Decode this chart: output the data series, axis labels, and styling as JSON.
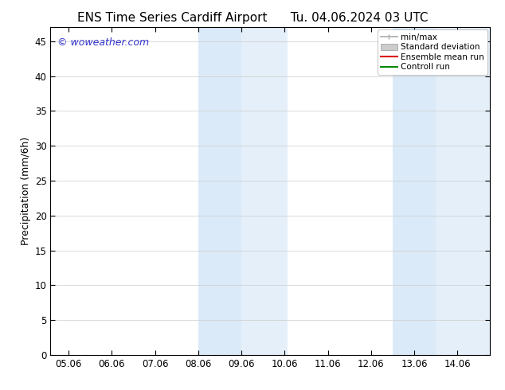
{
  "title_left": "ENS Time Series Cardiff Airport",
  "title_right": "Tu. 04.06.2024 03 UTC",
  "ylabel": "Precipitation (mm/6h)",
  "background_color": "#ffffff",
  "plot_bg_color": "#ffffff",
  "xlim_start": 4.58,
  "xlim_end": 14.75,
  "ylim": [
    0,
    47
  ],
  "yticks": [
    0,
    5,
    10,
    15,
    20,
    25,
    30,
    35,
    40,
    45
  ],
  "xtick_labels": [
    "05.06",
    "06.06",
    "07.06",
    "08.06",
    "09.06",
    "10.06",
    "11.06",
    "12.06",
    "13.06",
    "14.06"
  ],
  "xtick_positions": [
    5.0,
    6.0,
    7.0,
    8.0,
    9.0,
    10.0,
    11.0,
    12.0,
    13.0,
    14.0
  ],
  "shaded_regions": [
    {
      "x_start": 8.0,
      "x_end": 9.0,
      "color": "#dbeaf8"
    },
    {
      "x_start": 9.0,
      "x_end": 10.06,
      "color": "#e5eff9"
    },
    {
      "x_start": 12.5,
      "x_end": 13.5,
      "color": "#dbeaf8"
    },
    {
      "x_start": 13.5,
      "x_end": 14.75,
      "color": "#e5eff9"
    }
  ],
  "legend_items": [
    {
      "label": "min/max",
      "type": "minmax",
      "color": "#aaaaaa"
    },
    {
      "label": "Standard deviation",
      "type": "stddev",
      "color": "#cccccc"
    },
    {
      "label": "Ensemble mean run",
      "type": "line",
      "color": "#dd0000"
    },
    {
      "label": "Controll run",
      "type": "line",
      "color": "#008800"
    }
  ],
  "watermark": "© woweather.com",
  "watermark_color": "#3333cc",
  "title_fontsize": 11,
  "tick_fontsize": 8.5,
  "label_fontsize": 9,
  "legend_fontsize": 7.5
}
